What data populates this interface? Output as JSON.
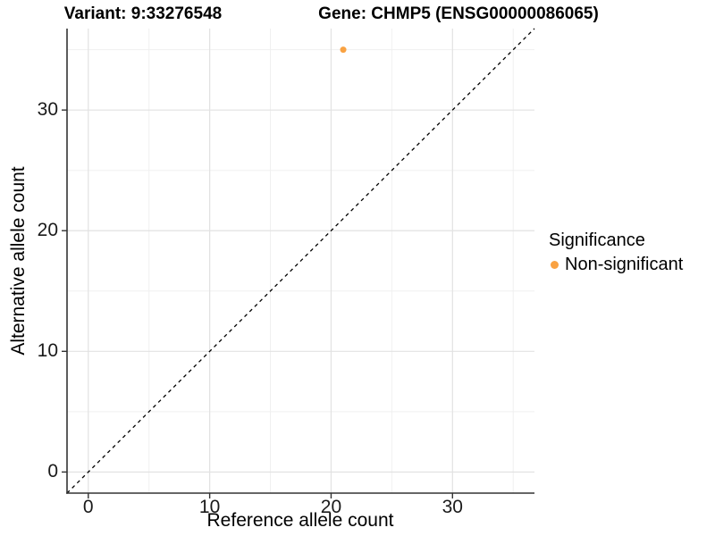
{
  "titles": {
    "variant": "Variant: 9:33276548",
    "gene": "Gene: CHMP5 (ENSG00000086065)"
  },
  "chart_data": {
    "type": "scatter",
    "xlabel": "Reference allele count",
    "ylabel": "Alternative allele count",
    "xlim": [
      -1.75,
      36.75
    ],
    "ylim": [
      -1.75,
      36.75
    ],
    "x_ticks": [
      0,
      10,
      20,
      30
    ],
    "y_ticks": [
      0,
      10,
      20,
      30
    ],
    "x_minor_ticks": [
      5,
      15,
      25,
      35
    ],
    "y_minor_ticks": [
      5,
      15,
      25,
      35
    ],
    "grid": true,
    "reference_line": {
      "type": "identity_y_equals_x",
      "style": "dashed",
      "color": "#000000"
    },
    "series": [
      {
        "name": "Non-significant",
        "color": "#F9A242",
        "points": [
          {
            "x": 21,
            "y": 35
          }
        ]
      }
    ],
    "legend": {
      "title": "Significance",
      "position": "right",
      "items": [
        {
          "label": "Non-significant",
          "color": "#F9A242"
        }
      ]
    }
  },
  "colors": {
    "background": "#FFFFFF",
    "grid_major": "#E2E2E2",
    "grid_minor": "#F0F0F0",
    "axis_line": "#333333",
    "tick_mark": "#333333",
    "tick_text": "#1A1A1A",
    "point": "#F9A242"
  }
}
